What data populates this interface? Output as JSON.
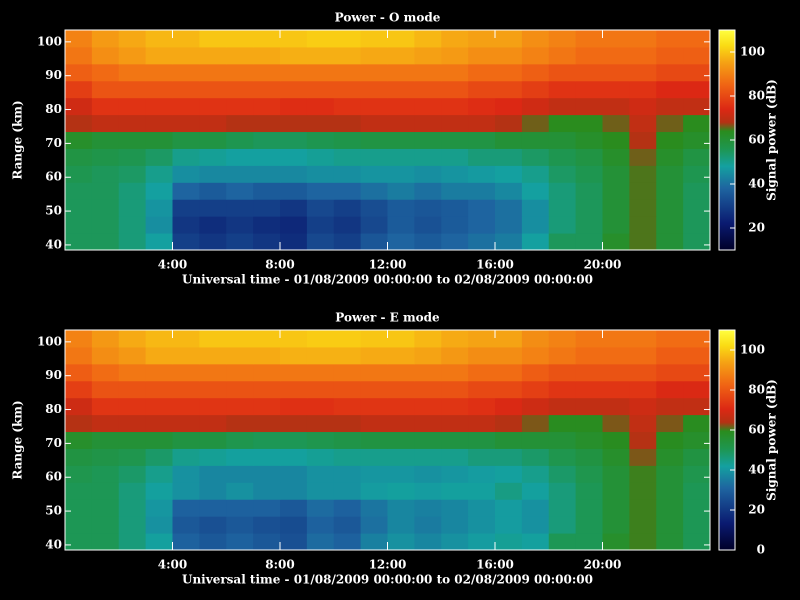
{
  "chart_data": [
    {
      "type": "heatmap",
      "title": "Power - O mode",
      "xlabel": "Universal time - 01/08/2009 00:00:00 to 02/08/2009 00:00:00",
      "ylabel": "Range (km)",
      "colorbar_label": "Signal power (dB)",
      "x": [
        0.5,
        1.5,
        2.5,
        3.5,
        4.5,
        5.5,
        6.5,
        7.5,
        8.5,
        9.5,
        10.5,
        11.5,
        12.5,
        13.5,
        14.5,
        15.5,
        16.5,
        17.5,
        18.5,
        19.5,
        20.5,
        21.5,
        22.5,
        23.5
      ],
      "y": [
        41,
        46,
        51,
        56,
        61,
        66,
        71,
        76,
        81,
        86,
        91,
        96,
        101
      ],
      "z": [
        [
          55,
          55,
          52,
          48,
          30,
          28,
          30,
          28,
          26,
          32,
          30,
          35,
          38,
          36,
          38,
          40,
          42,
          48,
          55,
          55,
          62,
          65,
          60,
          55
        ],
        [
          55,
          55,
          52,
          45,
          28,
          26,
          28,
          26,
          25,
          30,
          28,
          32,
          36,
          34,
          36,
          38,
          40,
          45,
          52,
          55,
          60,
          65,
          60,
          55
        ],
        [
          55,
          55,
          52,
          46,
          30,
          30,
          30,
          30,
          28,
          32,
          30,
          33,
          36,
          35,
          36,
          38,
          40,
          45,
          52,
          55,
          60,
          65,
          60,
          55
        ],
        [
          55,
          55,
          52,
          48,
          38,
          36,
          38,
          36,
          36,
          38,
          38,
          40,
          42,
          40,
          42,
          42,
          44,
          48,
          52,
          55,
          60,
          65,
          60,
          55
        ],
        [
          56,
          55,
          54,
          50,
          45,
          44,
          44,
          44,
          44,
          45,
          45,
          46,
          46,
          45,
          46,
          47,
          48,
          50,
          54,
          56,
          60,
          65,
          60,
          56
        ],
        [
          58,
          57,
          56,
          54,
          50,
          49,
          48,
          48,
          48,
          49,
          50,
          50,
          50,
          50,
          50,
          52,
          52,
          54,
          56,
          58,
          62,
          66,
          62,
          58
        ],
        [
          62,
          60,
          60,
          60,
          58,
          58,
          56,
          55,
          55,
          56,
          57,
          58,
          58,
          58,
          58,
          58,
          60,
          60,
          60,
          62,
          64,
          68,
          64,
          62
        ],
        [
          68,
          70,
          70,
          70,
          70,
          70,
          68,
          68,
          68,
          68,
          68,
          70,
          70,
          70,
          70,
          70,
          68,
          66,
          64,
          64,
          66,
          70,
          66,
          64
        ],
        [
          72,
          76,
          76,
          76,
          76,
          76,
          76,
          76,
          75,
          75,
          76,
          76,
          76,
          76,
          76,
          75,
          74,
          72,
          70,
          70,
          70,
          72,
          70,
          70
        ],
        [
          78,
          82,
          82,
          82,
          82,
          82,
          82,
          82,
          82,
          82,
          82,
          82,
          82,
          82,
          82,
          80,
          80,
          78,
          76,
          76,
          76,
          76,
          74,
          74
        ],
        [
          84,
          86,
          88,
          88,
          88,
          88,
          88,
          88,
          88,
          88,
          88,
          88,
          88,
          88,
          88,
          86,
          86,
          84,
          82,
          82,
          82,
          82,
          80,
          80
        ],
        [
          88,
          92,
          94,
          96,
          96,
          96,
          96,
          96,
          97,
          97,
          97,
          96,
          96,
          95,
          94,
          92,
          92,
          90,
          88,
          86,
          86,
          86,
          84,
          84
        ],
        [
          90,
          94,
          96,
          98,
          98,
          100,
          100,
          100,
          100,
          101,
          101,
          100,
          100,
          98,
          96,
          95,
          95,
          92,
          90,
          88,
          88,
          88,
          86,
          86
        ]
      ],
      "xlim": [
        0,
        24
      ],
      "xticks": [
        {
          "value": 4,
          "label": "4:00"
        },
        {
          "value": 8,
          "label": "8:00"
        },
        {
          "value": 12,
          "label": "12:00"
        },
        {
          "value": 16,
          "label": "16:00"
        },
        {
          "value": 20,
          "label": "20:00"
        }
      ],
      "ylim": [
        38.5,
        103.5
      ],
      "yticks": [
        40,
        50,
        60,
        70,
        80,
        90,
        100
      ],
      "zlim": [
        10,
        110
      ],
      "zticks": [
        20,
        40,
        60,
        80,
        100
      ],
      "colorscale": [
        [
          0,
          "#000028"
        ],
        [
          0.12,
          "#0a1a70"
        ],
        [
          0.28,
          "#1e64a0"
        ],
        [
          0.38,
          "#14a0a0"
        ],
        [
          0.46,
          "#1e9650"
        ],
        [
          0.54,
          "#2a8c1e"
        ],
        [
          0.58,
          "#b43214"
        ],
        [
          0.64,
          "#dc2814"
        ],
        [
          0.75,
          "#f06414"
        ],
        [
          0.85,
          "#f5a014"
        ],
        [
          0.93,
          "#fadc14"
        ],
        [
          1,
          "#ffff40"
        ]
      ]
    },
    {
      "type": "heatmap",
      "title": "Power - E mode",
      "xlabel": "Universal time - 01/08/2009 00:00:00 to 02/08/2009 00:00:00",
      "ylabel": "Range (km)",
      "colorbar_label": "Signal power (dB)",
      "x": [
        0.5,
        1.5,
        2.5,
        3.5,
        4.5,
        5.5,
        6.5,
        7.5,
        8.5,
        9.5,
        10.5,
        11.5,
        12.5,
        13.5,
        14.5,
        15.5,
        16.5,
        17.5,
        18.5,
        19.5,
        20.5,
        21.5,
        22.5,
        23.5
      ],
      "y": [
        41,
        46,
        51,
        56,
        61,
        66,
        71,
        76,
        81,
        86,
        91,
        96,
        101
      ],
      "z": [
        [
          50,
          50,
          46,
          42,
          30,
          28,
          30,
          28,
          26,
          32,
          30,
          36,
          39,
          37,
          39,
          41,
          43,
          42,
          50,
          50,
          57,
          60,
          55,
          50
        ],
        [
          50,
          50,
          46,
          39,
          28,
          26,
          28,
          26,
          25,
          30,
          28,
          33,
          37,
          35,
          37,
          39,
          41,
          39,
          46,
          50,
          55,
          60,
          55,
          50
        ],
        [
          50,
          50,
          46,
          40,
          30,
          30,
          30,
          30,
          28,
          32,
          30,
          34,
          37,
          36,
          37,
          39,
          41,
          39,
          46,
          50,
          55,
          60,
          55,
          50
        ],
        [
          50,
          50,
          46,
          42,
          39,
          37,
          39,
          37,
          37,
          39,
          39,
          41,
          42,
          41,
          42,
          42,
          45,
          42,
          46,
          50,
          55,
          60,
          55,
          50
        ],
        [
          51,
          50,
          48,
          44,
          39,
          37,
          37,
          37,
          37,
          39,
          39,
          40,
          40,
          39,
          40,
          41,
          42,
          44,
          48,
          51,
          55,
          60,
          55,
          51
        ],
        [
          53,
          52,
          51,
          48,
          44,
          43,
          42,
          42,
          42,
          43,
          44,
          44,
          44,
          44,
          44,
          46,
          46,
          48,
          51,
          53,
          57,
          62,
          57,
          53
        ],
        [
          57,
          55,
          55,
          55,
          53,
          53,
          51,
          50,
          50,
          51,
          52,
          53,
          53,
          53,
          53,
          53,
          55,
          55,
          55,
          57,
          59,
          64,
          59,
          57
        ],
        [
          64,
          66,
          66,
          66,
          66,
          66,
          64,
          64,
          64,
          64,
          64,
          66,
          66,
          66,
          66,
          66,
          64,
          62,
          59,
          59,
          62,
          66,
          62,
          59
        ],
        [
          68,
          73,
          73,
          73,
          73,
          73,
          73,
          73,
          72,
          72,
          73,
          73,
          73,
          73,
          73,
          72,
          70,
          68,
          66,
          66,
          66,
          68,
          66,
          66
        ],
        [
          75,
          79,
          79,
          79,
          79,
          79,
          79,
          79,
          79,
          79,
          79,
          79,
          79,
          79,
          79,
          77,
          77,
          75,
          73,
          73,
          73,
          73,
          70,
          70
        ],
        [
          81,
          84,
          86,
          86,
          86,
          86,
          86,
          86,
          86,
          86,
          86,
          86,
          86,
          86,
          86,
          84,
          84,
          81,
          79,
          79,
          79,
          79,
          77,
          77
        ],
        [
          86,
          90,
          92,
          95,
          95,
          95,
          95,
          95,
          96,
          96,
          96,
          95,
          95,
          94,
          92,
          90,
          90,
          88,
          86,
          84,
          84,
          84,
          81,
          81
        ],
        [
          88,
          92,
          95,
          97,
          97,
          99,
          99,
          99,
          99,
          100,
          100,
          99,
          99,
          97,
          95,
          94,
          94,
          90,
          88,
          86,
          86,
          86,
          84,
          84
        ]
      ],
      "xlim": [
        0,
        24
      ],
      "xticks": [
        {
          "value": 4,
          "label": "4:00"
        },
        {
          "value": 8,
          "label": "8:00"
        },
        {
          "value": 12,
          "label": "12:00"
        },
        {
          "value": 16,
          "label": "16:00"
        },
        {
          "value": 20,
          "label": "20:00"
        }
      ],
      "ylim": [
        38.5,
        103.5
      ],
      "yticks": [
        40,
        50,
        60,
        70,
        80,
        90,
        100
      ],
      "zlim": [
        0,
        110
      ],
      "zticks": [
        0,
        20,
        40,
        60,
        80,
        100
      ],
      "colorscale": [
        [
          0,
          "#000028"
        ],
        [
          0.12,
          "#0a1a70"
        ],
        [
          0.28,
          "#1e64a0"
        ],
        [
          0.38,
          "#14a0a0"
        ],
        [
          0.46,
          "#1e9650"
        ],
        [
          0.54,
          "#2a8c1e"
        ],
        [
          0.58,
          "#b43214"
        ],
        [
          0.64,
          "#dc2814"
        ],
        [
          0.75,
          "#f06414"
        ],
        [
          0.85,
          "#f5a014"
        ],
        [
          0.93,
          "#fadc14"
        ],
        [
          1,
          "#ffff40"
        ]
      ]
    }
  ]
}
